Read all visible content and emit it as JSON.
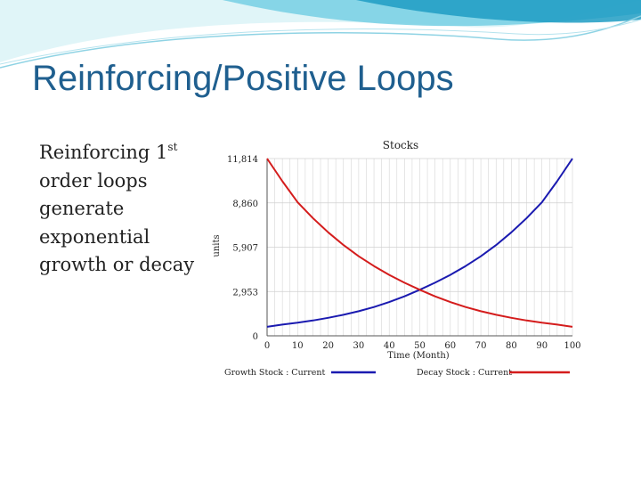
{
  "slide": {
    "title": "Reinforcing/Positive Loops",
    "body": {
      "line1_text": "Reinforcing 1",
      "line1_sup": "st",
      "lines": [
        "order loops",
        "generate",
        "exponential",
        "growth or decay"
      ]
    }
  },
  "colors": {
    "title": "#1f5f8f",
    "growth": "#1a1ab0",
    "decay": "#d41c1c",
    "wave_light": "#c6ecf3",
    "wave_mid": "#6fcde2",
    "wave_dark": "#1e9cc3"
  },
  "chart_data": {
    "type": "line",
    "title": "Stocks",
    "xlabel": "Time (Month)",
    "ylabel": "units",
    "xlim": [
      0,
      100
    ],
    "ylim": [
      0,
      11814
    ],
    "x_ticks": [
      0,
      10,
      20,
      30,
      40,
      50,
      60,
      70,
      80,
      90,
      100
    ],
    "y_ticks": [
      0,
      2953,
      5907,
      8860,
      11814
    ],
    "y_tick_labels": [
      "0",
      "2,953",
      "5,907",
      "8,860",
      "11,814"
    ],
    "grid": true,
    "legend": "bottom",
    "x": [
      0,
      5,
      10,
      15,
      20,
      25,
      30,
      35,
      40,
      45,
      50,
      55,
      60,
      65,
      70,
      75,
      80,
      85,
      90,
      95,
      100
    ],
    "series": [
      {
        "name": "Growth Stock : Current",
        "values": [
          600,
          750,
          870,
          1020,
          1200,
          1400,
          1640,
          1920,
          2250,
          2630,
          3070,
          3540,
          4060,
          4650,
          5300,
          6050,
          6900,
          7850,
          8900,
          10300,
          11814
        ]
      },
      {
        "name": "Decay Stock : Current",
        "values": [
          11814,
          10300,
          8900,
          7850,
          6900,
          6050,
          5300,
          4650,
          4060,
          3540,
          3070,
          2630,
          2250,
          1920,
          1640,
          1400,
          1200,
          1020,
          870,
          750,
          600
        ]
      }
    ]
  }
}
